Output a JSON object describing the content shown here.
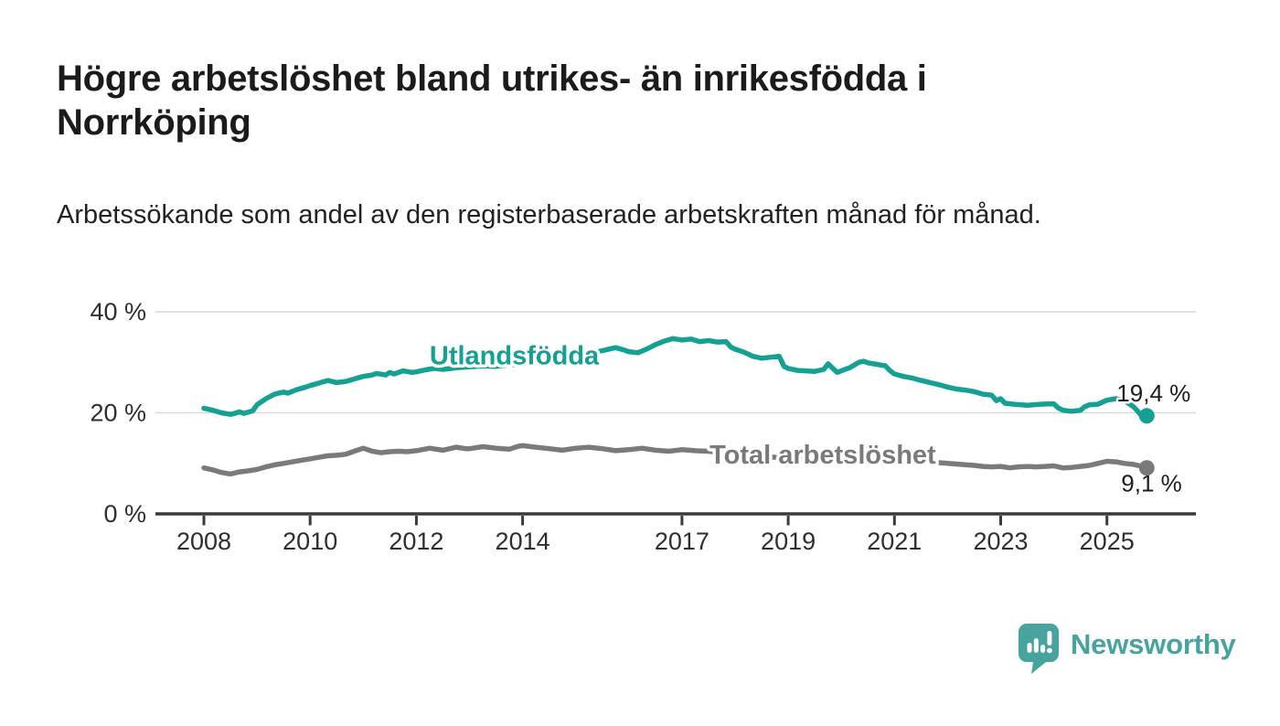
{
  "title": "Högre arbetslöshet bland utrikes- än inrikesfödda i Norrköping",
  "subtitle": "Arbetssökande som andel av den registerbaserade arbetskraften månad för månad.",
  "branding": {
    "logo_text": "Newsworthy",
    "color": "#46a39d"
  },
  "chart_data": {
    "type": "line",
    "title": "Högre arbetslöshet bland utrikes- än inrikesfödda i Norrköping",
    "subtitle": "Arbetssökande som andel av den registerbaserade arbetskraften månad för månad.",
    "unit": "%",
    "grid": "horizontal",
    "x_axis": {
      "range": [
        2007.1,
        2026.7
      ],
      "ticks": [
        {
          "year": 2008,
          "label": "2008"
        },
        {
          "year": 2010,
          "label": "2010"
        },
        {
          "year": 2012,
          "label": "2012"
        },
        {
          "year": 2014,
          "label": "2014"
        },
        {
          "year": 2017,
          "label": "2017"
        },
        {
          "year": 2019,
          "label": "2019"
        },
        {
          "year": 2021,
          "label": "2021"
        },
        {
          "year": 2023,
          "label": "2023"
        },
        {
          "year": 2025,
          "label": "2025"
        }
      ]
    },
    "y_axis": {
      "range": [
        0,
        42
      ],
      "gridlines": [
        20,
        40
      ],
      "ticks": [
        {
          "value": 0,
          "label": "0 %"
        },
        {
          "value": 20,
          "label": "20 %"
        },
        {
          "value": 40,
          "label": "40 %"
        }
      ]
    },
    "series": [
      {
        "name": "total-arbetsloshet",
        "color": "#7a7a7a",
        "end_label": "9,1 %",
        "end_value": 9.1,
        "end_label_side": "below",
        "series_label": {
          "text": "Total arbetslöshet",
          "year": 2017.52,
          "value": 10.0
        },
        "points": [
          [
            2008.0,
            9.1
          ],
          [
            2008.17,
            8.7
          ],
          [
            2008.33,
            8.2
          ],
          [
            2008.5,
            7.9
          ],
          [
            2008.67,
            8.3
          ],
          [
            2008.83,
            8.5
          ],
          [
            2009.0,
            8.8
          ],
          [
            2009.17,
            9.3
          ],
          [
            2009.33,
            9.7
          ],
          [
            2009.5,
            10.0
          ],
          [
            2009.67,
            10.3
          ],
          [
            2009.83,
            10.6
          ],
          [
            2010.0,
            10.9
          ],
          [
            2010.17,
            11.2
          ],
          [
            2010.33,
            11.5
          ],
          [
            2010.5,
            11.6
          ],
          [
            2010.67,
            11.8
          ],
          [
            2010.83,
            12.4
          ],
          [
            2011.0,
            13.0
          ],
          [
            2011.17,
            12.4
          ],
          [
            2011.33,
            12.1
          ],
          [
            2011.5,
            12.3
          ],
          [
            2011.67,
            12.4
          ],
          [
            2011.83,
            12.3
          ],
          [
            2012.0,
            12.5
          ],
          [
            2012.25,
            13.0
          ],
          [
            2012.5,
            12.6
          ],
          [
            2012.75,
            13.2
          ],
          [
            2012.92,
            12.9
          ],
          [
            2013.0,
            12.9
          ],
          [
            2013.25,
            13.3
          ],
          [
            2013.5,
            13.0
          ],
          [
            2013.75,
            12.8
          ],
          [
            2013.92,
            13.4
          ],
          [
            2014.0,
            13.5
          ],
          [
            2014.25,
            13.2
          ],
          [
            2014.5,
            12.9
          ],
          [
            2014.75,
            12.6
          ],
          [
            2015.0,
            13.0
          ],
          [
            2015.25,
            13.2
          ],
          [
            2015.5,
            12.9
          ],
          [
            2015.75,
            12.5
          ],
          [
            2016.0,
            12.7
          ],
          [
            2016.25,
            13.0
          ],
          [
            2016.5,
            12.6
          ],
          [
            2016.75,
            12.4
          ],
          [
            2017.0,
            12.7
          ],
          [
            2017.25,
            12.5
          ],
          [
            2017.5,
            12.4
          ],
          [
            2017.75,
            12.1
          ],
          [
            2018.0,
            11.9
          ],
          [
            2018.25,
            11.6
          ],
          [
            2018.5,
            11.4
          ],
          [
            2018.75,
            11.2
          ],
          [
            2019.0,
            11.1
          ],
          [
            2019.25,
            11.0
          ],
          [
            2019.5,
            10.9
          ],
          [
            2019.75,
            11.0
          ],
          [
            2020.0,
            11.1
          ],
          [
            2020.33,
            11.6
          ],
          [
            2020.5,
            11.7
          ],
          [
            2020.75,
            11.5
          ],
          [
            2021.0,
            11.2
          ],
          [
            2021.25,
            10.8
          ],
          [
            2021.5,
            10.5
          ],
          [
            2021.75,
            10.2
          ],
          [
            2022.0,
            10.0
          ],
          [
            2022.25,
            9.8
          ],
          [
            2022.5,
            9.6
          ],
          [
            2022.67,
            9.4
          ],
          [
            2022.83,
            9.3
          ],
          [
            2023.0,
            9.4
          ],
          [
            2023.17,
            9.1
          ],
          [
            2023.33,
            9.3
          ],
          [
            2023.5,
            9.4
          ],
          [
            2023.67,
            9.3
          ],
          [
            2023.83,
            9.4
          ],
          [
            2024.0,
            9.5
          ],
          [
            2024.17,
            9.1
          ],
          [
            2024.33,
            9.2
          ],
          [
            2024.5,
            9.4
          ],
          [
            2024.67,
            9.6
          ],
          [
            2024.83,
            10.0
          ],
          [
            2025.0,
            10.4
          ],
          [
            2025.17,
            10.3
          ],
          [
            2025.33,
            10.0
          ],
          [
            2025.5,
            9.8
          ],
          [
            2025.67,
            9.4
          ],
          [
            2025.75,
            9.1
          ]
        ]
      },
      {
        "name": "utlandsfodda",
        "color": "#14a093",
        "end_label": "19,4 %",
        "end_value": 19.4,
        "end_label_side": "above",
        "series_label": {
          "text": "Utlandsfödda",
          "year": 2012.25,
          "value": 29.6
        },
        "points": [
          [
            2008.0,
            20.9
          ],
          [
            2008.17,
            20.5
          ],
          [
            2008.33,
            20.0
          ],
          [
            2008.5,
            19.7
          ],
          [
            2008.58,
            19.9
          ],
          [
            2008.67,
            20.2
          ],
          [
            2008.75,
            19.9
          ],
          [
            2008.92,
            20.4
          ],
          [
            2009.0,
            21.6
          ],
          [
            2009.17,
            22.8
          ],
          [
            2009.33,
            23.7
          ],
          [
            2009.5,
            24.1
          ],
          [
            2009.58,
            23.9
          ],
          [
            2009.75,
            24.6
          ],
          [
            2009.92,
            25.1
          ],
          [
            2010.0,
            25.4
          ],
          [
            2010.17,
            25.9
          ],
          [
            2010.33,
            26.4
          ],
          [
            2010.5,
            26.0
          ],
          [
            2010.67,
            26.2
          ],
          [
            2010.83,
            26.7
          ],
          [
            2011.0,
            27.2
          ],
          [
            2011.17,
            27.5
          ],
          [
            2011.25,
            27.8
          ],
          [
            2011.42,
            27.5
          ],
          [
            2011.5,
            28.0
          ],
          [
            2011.58,
            27.7
          ],
          [
            2011.75,
            28.3
          ],
          [
            2011.92,
            28.0
          ],
          [
            2012.0,
            28.1
          ],
          [
            2012.17,
            28.5
          ],
          [
            2012.33,
            28.8
          ],
          [
            2012.5,
            28.6
          ],
          [
            2012.75,
            28.9
          ],
          [
            2013.0,
            29.1
          ],
          [
            2013.25,
            29.3
          ],
          [
            2013.5,
            29.2
          ],
          [
            2013.75,
            29.5
          ],
          [
            2014.0,
            29.7
          ],
          [
            2014.25,
            30.0
          ],
          [
            2014.5,
            30.4
          ],
          [
            2014.75,
            30.8
          ],
          [
            2015.0,
            31.2
          ],
          [
            2015.25,
            31.7
          ],
          [
            2015.5,
            32.3
          ],
          [
            2015.75,
            32.9
          ],
          [
            2015.92,
            32.4
          ],
          [
            2016.0,
            32.1
          ],
          [
            2016.17,
            31.9
          ],
          [
            2016.33,
            32.6
          ],
          [
            2016.5,
            33.5
          ],
          [
            2016.67,
            34.2
          ],
          [
            2016.83,
            34.7
          ],
          [
            2017.0,
            34.4
          ],
          [
            2017.17,
            34.6
          ],
          [
            2017.33,
            34.1
          ],
          [
            2017.5,
            34.3
          ],
          [
            2017.67,
            34.0
          ],
          [
            2017.83,
            34.1
          ],
          [
            2017.92,
            33.0
          ],
          [
            2018.0,
            32.6
          ],
          [
            2018.17,
            32.0
          ],
          [
            2018.33,
            31.2
          ],
          [
            2018.5,
            30.8
          ],
          [
            2018.67,
            31.0
          ],
          [
            2018.83,
            31.2
          ],
          [
            2018.92,
            29.2
          ],
          [
            2019.0,
            28.8
          ],
          [
            2019.17,
            28.4
          ],
          [
            2019.33,
            28.3
          ],
          [
            2019.5,
            28.2
          ],
          [
            2019.67,
            28.6
          ],
          [
            2019.75,
            29.7
          ],
          [
            2019.92,
            28.0
          ],
          [
            2020.0,
            28.3
          ],
          [
            2020.17,
            29.0
          ],
          [
            2020.33,
            30.0
          ],
          [
            2020.42,
            30.2
          ],
          [
            2020.5,
            29.9
          ],
          [
            2020.67,
            29.6
          ],
          [
            2020.83,
            29.3
          ],
          [
            2020.92,
            28.3
          ],
          [
            2021.0,
            27.7
          ],
          [
            2021.17,
            27.2
          ],
          [
            2021.33,
            26.9
          ],
          [
            2021.5,
            26.4
          ],
          [
            2021.67,
            26.0
          ],
          [
            2021.83,
            25.6
          ],
          [
            2022.0,
            25.1
          ],
          [
            2022.17,
            24.7
          ],
          [
            2022.33,
            24.5
          ],
          [
            2022.5,
            24.2
          ],
          [
            2022.67,
            23.7
          ],
          [
            2022.83,
            23.5
          ],
          [
            2022.92,
            22.4
          ],
          [
            2023.0,
            22.8
          ],
          [
            2023.08,
            21.9
          ],
          [
            2023.25,
            21.7
          ],
          [
            2023.5,
            21.5
          ],
          [
            2023.75,
            21.7
          ],
          [
            2024.0,
            21.8
          ],
          [
            2024.08,
            21.0
          ],
          [
            2024.17,
            20.5
          ],
          [
            2024.33,
            20.3
          ],
          [
            2024.5,
            20.5
          ],
          [
            2024.58,
            21.2
          ],
          [
            2024.67,
            21.6
          ],
          [
            2024.83,
            21.7
          ],
          [
            2025.0,
            22.5
          ],
          [
            2025.17,
            22.8
          ],
          [
            2025.33,
            22.4
          ],
          [
            2025.5,
            21.2
          ],
          [
            2025.58,
            20.3
          ],
          [
            2025.67,
            19.2
          ],
          [
            2025.75,
            19.4
          ]
        ]
      }
    ]
  }
}
